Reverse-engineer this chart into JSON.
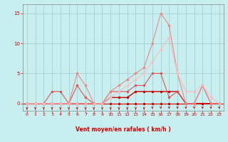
{
  "xlabel": "Vent moyen/en rafales ( km/h )",
  "xlim": [
    -0.5,
    23.5
  ],
  "ylim": [
    -1.2,
    16.5
  ],
  "yticks": [
    0,
    5,
    10,
    15
  ],
  "xticks": [
    0,
    1,
    2,
    3,
    4,
    5,
    6,
    7,
    8,
    9,
    10,
    11,
    12,
    13,
    14,
    15,
    16,
    17,
    18,
    19,
    20,
    21,
    22,
    23
  ],
  "bg_color": "#c8eef0",
  "grid_color": "#99cccc",
  "series": [
    {
      "x": [
        0,
        1,
        2,
        3,
        4,
        5,
        6,
        7,
        8,
        9,
        10,
        11,
        12,
        13,
        14,
        15,
        16,
        17,
        18,
        19,
        20,
        21,
        22,
        23
      ],
      "y": [
        0,
        0,
        0,
        0,
        0,
        0,
        0,
        0,
        0,
        0,
        0,
        0,
        0,
        0,
        0,
        0,
        0,
        0,
        0,
        0,
        0,
        0,
        0,
        0
      ],
      "color": "#cc0000",
      "lw": 0.8,
      "marker": "o",
      "ms": 1.5
    },
    {
      "x": [
        0,
        1,
        2,
        3,
        4,
        5,
        6,
        7,
        8,
        9,
        10,
        11,
        12,
        13,
        14,
        15,
        16,
        17,
        18,
        19,
        20,
        21,
        22,
        23
      ],
      "y": [
        0,
        0,
        0,
        0,
        0,
        0,
        0,
        0,
        0,
        0,
        1,
        1,
        1,
        2,
        2,
        2,
        2,
        2,
        2,
        0,
        0,
        0,
        0,
        0
      ],
      "color": "#cc0000",
      "lw": 1.0,
      "marker": "o",
      "ms": 1.5
    },
    {
      "x": [
        0,
        1,
        2,
        3,
        4,
        5,
        6,
        7,
        8,
        9,
        10,
        11,
        12,
        13,
        14,
        15,
        16,
        17,
        18,
        19,
        20,
        21,
        22,
        23
      ],
      "y": [
        0,
        0,
        0,
        2,
        2,
        0,
        3,
        1,
        0,
        0,
        2,
        2,
        2,
        3,
        3,
        5,
        5,
        1,
        2,
        0,
        0,
        3,
        0,
        0
      ],
      "color": "#dd5555",
      "lw": 0.8,
      "marker": "o",
      "ms": 1.5
    },
    {
      "x": [
        0,
        1,
        2,
        3,
        4,
        5,
        6,
        7,
        8,
        9,
        10,
        11,
        12,
        13,
        14,
        15,
        16,
        17,
        18,
        19,
        20,
        21,
        22,
        23
      ],
      "y": [
        0,
        0,
        0,
        0,
        0,
        0,
        5,
        3,
        0,
        0,
        2,
        3,
        4,
        5,
        6,
        10,
        15,
        13,
        5,
        0,
        0,
        3,
        0,
        0
      ],
      "color": "#ee8888",
      "lw": 0.8,
      "marker": "o",
      "ms": 1.5
    },
    {
      "x": [
        0,
        1,
        2,
        3,
        4,
        5,
        6,
        7,
        8,
        9,
        10,
        11,
        12,
        13,
        14,
        15,
        16,
        17,
        18,
        19,
        20,
        21,
        22,
        23
      ],
      "y": [
        0,
        0,
        0,
        0,
        0,
        0,
        0,
        0,
        0,
        0,
        1,
        2,
        3,
        4,
        5,
        7,
        9,
        11,
        5,
        2,
        2,
        3,
        1,
        0
      ],
      "color": "#ffbbbb",
      "lw": 0.8,
      "marker": "o",
      "ms": 1.5
    }
  ],
  "arrows": {
    "x": [
      0,
      1,
      2,
      3,
      4,
      5,
      6,
      7,
      8,
      9,
      10,
      11,
      12,
      13,
      14,
      15,
      16,
      17,
      18,
      19,
      20,
      21,
      22,
      23
    ],
    "angles_deg": [
      270,
      270,
      270,
      270,
      270,
      270,
      270,
      270,
      270,
      270,
      270,
      270,
      270,
      270,
      270,
      225,
      225,
      225,
      225,
      225,
      225,
      225,
      225,
      225
    ],
    "color": "#cc0000"
  },
  "tick_label_size": 4.5,
  "xlabel_size": 5.5
}
